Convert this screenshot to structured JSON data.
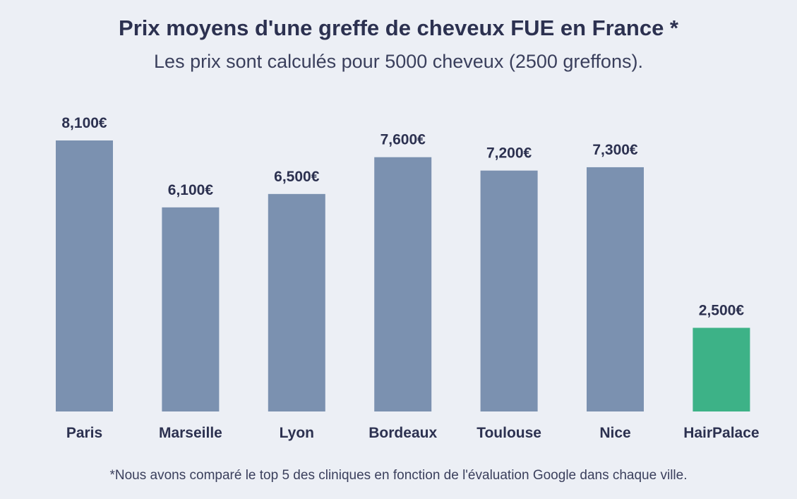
{
  "chart_data": {
    "type": "bar",
    "title": "Prix moyens d'une greffe de cheveux FUE en France *",
    "subtitle": "Les prix sont calculés pour 5000 cheveux (2500 greffons).",
    "footnote": "*Nous avons comparé le top 5 des cliniques en fonction de l'évaluation Google dans chaque ville.",
    "categories": [
      "Paris",
      "Marseille",
      "Lyon",
      "Bordeaux",
      "Toulouse",
      "Nice",
      "HairPalace"
    ],
    "values": [
      8100,
      6100,
      6500,
      7600,
      7200,
      7300,
      2500
    ],
    "value_labels": [
      "8,100€",
      "6,100€",
      "6,500€",
      "7,600€",
      "7,200€",
      "7,300€",
      "2,500€"
    ],
    "colors": [
      "#7b91b0",
      "#7b91b0",
      "#7b91b0",
      "#7b91b0",
      "#7b91b0",
      "#7b91b0",
      "#3db287"
    ],
    "xlabel": "",
    "ylabel": "",
    "ylim": [
      0,
      8100
    ],
    "grid": false
  }
}
